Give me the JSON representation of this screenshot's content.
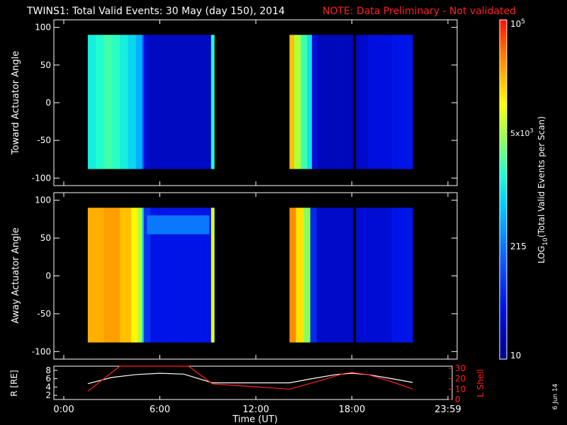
{
  "title": "TWINS1: Total Valid Events: 30 May (day 150), 2014",
  "note": "NOTE: Data Preliminary - Not validated",
  "footer_date": "6 Jun 14",
  "chart_data": [
    {
      "type": "heatmap",
      "ylabel": "Toward Actuator Angle",
      "ylim": [
        -110,
        110
      ],
      "yticks": [
        "100",
        "50",
        "0",
        "-50",
        "-100"
      ],
      "ytick_values": [
        100,
        50,
        0,
        -50,
        -100
      ],
      "data_y_range": [
        -88,
        90
      ],
      "segments": [
        {
          "x_start": 1.5,
          "x_end": 9.4
        },
        {
          "x_start": 14.1,
          "x_end": 21.8
        }
      ],
      "columns": [
        {
          "x": 1.5,
          "level": 0.52
        },
        {
          "x": 2.0,
          "level": 0.55
        },
        {
          "x": 2.5,
          "level": 0.58
        },
        {
          "x": 3.0,
          "level": 0.56
        },
        {
          "x": 3.5,
          "level": 0.52
        },
        {
          "x": 4.0,
          "level": 0.48
        },
        {
          "x": 4.5,
          "level": 0.42
        },
        {
          "x": 4.9,
          "level": 0.28
        },
        {
          "x": 5.0,
          "level": 0.14
        },
        {
          "x": 5.2,
          "level": 0.09
        },
        {
          "x": 9.1,
          "level": 0.08
        },
        {
          "x": 9.2,
          "level": 0.55
        },
        {
          "x": 14.1,
          "level": 0.82
        },
        {
          "x": 14.4,
          "level": 0.68
        },
        {
          "x": 14.8,
          "level": 0.58
        },
        {
          "x": 15.2,
          "level": 0.5
        },
        {
          "x": 15.5,
          "level": 0.14
        },
        {
          "x": 15.8,
          "level": 0.08
        },
        {
          "x": 18.2,
          "level": 0.06
        },
        {
          "x": 18.3,
          "level": 0.1
        },
        {
          "x": 19.0,
          "level": 0.14
        },
        {
          "x": 20.5,
          "level": 0.16
        }
      ],
      "gaps": [
        {
          "x_start": 18.1,
          "x_end": 18.25
        }
      ]
    },
    {
      "type": "heatmap",
      "ylabel": "Away Actuator Angle",
      "ylim": [
        -110,
        110
      ],
      "yticks": [
        "100",
        "50",
        "0",
        "-50",
        "-100"
      ],
      "ytick_values": [
        100,
        50,
        0,
        -50,
        -100
      ],
      "data_y_range": [
        -88,
        90
      ],
      "segments": [
        {
          "x_start": 1.5,
          "x_end": 9.4
        },
        {
          "x_start": 14.1,
          "x_end": 21.8
        }
      ],
      "columns": [
        {
          "x": 1.5,
          "level": 0.84
        },
        {
          "x": 2.5,
          "level": 0.86
        },
        {
          "x": 3.5,
          "level": 0.82
        },
        {
          "x": 4.2,
          "level": 0.76
        },
        {
          "x": 4.6,
          "level": 0.68
        },
        {
          "x": 4.9,
          "level": 0.45
        },
        {
          "x": 5.0,
          "level": 0.22
        },
        {
          "x": 5.4,
          "level": 0.16
        },
        {
          "x": 9.1,
          "level": 0.12
        },
        {
          "x": 9.2,
          "level": 0.72
        },
        {
          "x": 14.1,
          "level": 0.88
        },
        {
          "x": 14.5,
          "level": 0.78
        },
        {
          "x": 15.0,
          "level": 0.64
        },
        {
          "x": 15.4,
          "level": 0.2
        },
        {
          "x": 15.8,
          "level": 0.1
        },
        {
          "x": 18.2,
          "level": 0.07
        },
        {
          "x": 18.3,
          "level": 0.12
        },
        {
          "x": 20.5,
          "level": 0.16
        }
      ],
      "band": {
        "x_start": 5.2,
        "x_end": 9.1,
        "y_low": 55,
        "y_high": 80,
        "level": 0.36
      },
      "gaps": [
        {
          "x_start": 18.1,
          "x_end": 18.25
        }
      ]
    },
    {
      "type": "line",
      "ylabel": "R [RE]",
      "y2label": "L Shell",
      "xlabel": "Time (UT)",
      "xlim": [
        0,
        24
      ],
      "ylim": [
        1,
        9
      ],
      "y2lim": [
        0,
        32
      ],
      "yticks": [
        "8",
        "6",
        "4",
        "2"
      ],
      "ytick_values": [
        8,
        6,
        4,
        2
      ],
      "y2ticks": [
        "30",
        "20",
        "10",
        "0"
      ],
      "y2tick_values": [
        30,
        20,
        10,
        0
      ],
      "xticks": [
        "0:00",
        "6:00",
        "12:00",
        "18:00",
        "23:59"
      ],
      "xtick_values": [
        0,
        6,
        12,
        18,
        24
      ],
      "series": [
        {
          "color": "#ffffff",
          "x": [
            1.5,
            3,
            4.5,
            6,
            7.5,
            9.3,
            14.1,
            15.5,
            17,
            18,
            19,
            20.5,
            21.8
          ],
          "y": [
            4.8,
            6.3,
            7.0,
            7.3,
            7.1,
            5.0,
            5.0,
            6.0,
            7.0,
            7.3,
            7.0,
            6.0,
            5.1
          ]
        },
        {
          "color": "#ff2020",
          "axis": "y2",
          "x": [
            1.5,
            3.5,
            7.8,
            9.3,
            14.1,
            16,
            17.5,
            18,
            19,
            20.5,
            21.8
          ],
          "y": [
            8,
            32,
            32,
            15,
            10,
            18,
            25,
            26,
            24,
            17,
            10
          ]
        }
      ]
    }
  ],
  "colorbar": {
    "label_prefix": "LOG",
    "label_sub": "10",
    "label_suffix": "(Total Valid Events per Scan)",
    "tick_top_base": "10",
    "tick_top_exp": "5",
    "tick_mid_base": "5x10",
    "tick_mid_exp": "3",
    "tick_low": "215",
    "tick_bottom": "10",
    "tick_levels": [
      1.0,
      0.86,
      0.4,
      0.0
    ]
  }
}
